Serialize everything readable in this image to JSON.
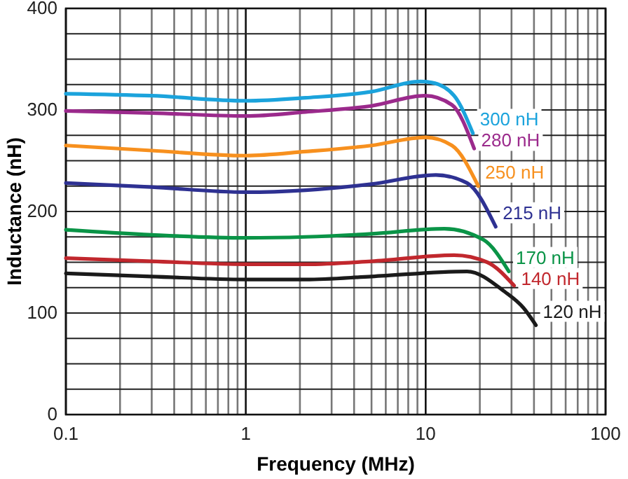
{
  "chart_data": {
    "type": "line",
    "xlabel": "Frequency (MHz)",
    "ylabel": "Inductance (nH)",
    "log": "x",
    "grid": true,
    "marker": "none",
    "line_style": "solid",
    "xlim": [
      0.1,
      100
    ],
    "ylim": [
      0,
      400
    ],
    "xticks": [
      0.1,
      {
        "value": 0.2,
        "label": null
      },
      {
        "value": 0.3,
        "label": null
      },
      {
        "value": 0.4,
        "label": null
      },
      {
        "value": 0.5,
        "label": null
      },
      {
        "value": 0.6,
        "label": null
      },
      {
        "value": 0.7,
        "label": null
      },
      {
        "value": 0.8,
        "label": null
      },
      {
        "value": 0.9,
        "label": null
      },
      1,
      {
        "value": 2,
        "label": null
      },
      {
        "value": 3,
        "label": null
      },
      {
        "value": 4,
        "label": null
      },
      {
        "value": 5,
        "label": null
      },
      {
        "value": 6,
        "label": null
      },
      {
        "value": 7,
        "label": null
      },
      {
        "value": 8,
        "label": null
      },
      {
        "value": 9,
        "label": null
      },
      10,
      {
        "value": 20,
        "label": null
      },
      {
        "value": 30,
        "label": null
      },
      {
        "value": 40,
        "label": null
      },
      {
        "value": 50,
        "label": null
      },
      {
        "value": 60,
        "label": null
      },
      {
        "value": 70,
        "label": null
      },
      {
        "value": 80,
        "label": null
      },
      {
        "value": 90,
        "label": null
      },
      100
    ],
    "yticks": [
      0,
      {
        "value": 25,
        "label": null
      },
      {
        "value": 50,
        "label": null
      },
      {
        "value": 75,
        "label": null
      },
      100,
      {
        "value": 125,
        "label": null
      },
      {
        "value": 150,
        "label": null
      },
      {
        "value": 175,
        "label": null
      },
      200,
      {
        "value": 225,
        "label": null
      },
      {
        "value": 250,
        "label": null
      },
      {
        "value": 275,
        "label": null
      },
      300,
      {
        "value": 325,
        "label": null
      },
      {
        "value": 350,
        "label": null
      },
      {
        "value": 375,
        "label": null
      },
      400
    ],
    "series": [
      {
        "name": "300 nH",
        "color": "#1ba3dc",
        "x": [
          0.1,
          0.3,
          1,
          2.15,
          5,
          9.3,
          10.8,
          14.4,
          18.3
        ],
        "values": [
          316,
          314,
          309,
          312,
          318,
          328,
          327,
          314,
          277
        ]
      },
      {
        "name": "280 nH",
        "color": "#9b2a8c",
        "x": [
          0.1,
          0.3,
          1,
          2.15,
          5,
          9.9,
          14,
          18.6
        ],
        "values": [
          299,
          297,
          294,
          298,
          304,
          314,
          305,
          262
        ]
      },
      {
        "name": "250 nH",
        "color": "#f7901e",
        "x": [
          0.1,
          0.3,
          1,
          2.15,
          5,
          10,
          14,
          19.6
        ],
        "values": [
          265,
          260,
          255,
          259,
          265,
          273,
          265,
          225
        ]
      },
      {
        "name": "215 nH",
        "color": "#2e3192",
        "x": [
          0.1,
          0.3,
          1,
          2.15,
          5,
          11.4,
          17,
          24.5
        ],
        "values": [
          228,
          224,
          219,
          221,
          227,
          236,
          228,
          185
        ]
      },
      {
        "name": "170 nH",
        "color": "#0a9447",
        "x": [
          0.1,
          0.3,
          1,
          2.15,
          5,
          12.7,
          21,
          29
        ],
        "values": [
          182,
          177,
          174,
          175,
          178,
          183,
          172,
          141
        ]
      },
      {
        "name": "140 nH",
        "color": "#c1272d",
        "x": [
          0.1,
          0.3,
          1,
          2.15,
          5,
          14.4,
          22,
          31
        ],
        "values": [
          154,
          151,
          148,
          148,
          151,
          157,
          150,
          127
        ]
      },
      {
        "name": "120 nH",
        "color": "#1a1a1a",
        "x": [
          0.1,
          0.3,
          1,
          2.15,
          5,
          17,
          27.5,
          35,
          41
        ],
        "values": [
          139,
          136,
          133,
          133,
          136,
          141,
          121,
          105,
          88
        ]
      }
    ]
  }
}
